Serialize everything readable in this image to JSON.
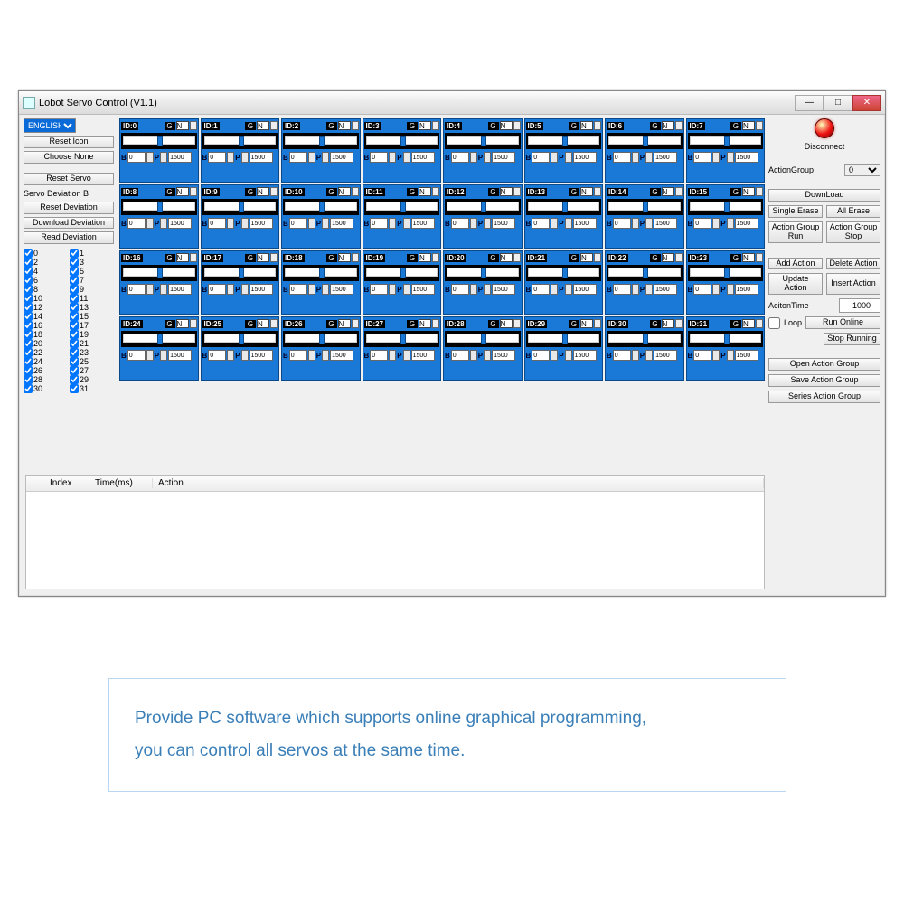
{
  "window": {
    "title": "Lobot Servo Control (V1.1)"
  },
  "left": {
    "language": "ENGLISH",
    "reset_icon": "Reset Icon",
    "choose_none": "Choose None",
    "reset_servo": "Reset Servo",
    "deviation_label": "Servo Deviation B",
    "reset_dev": "Reset Deviation",
    "download_dev": "Download Deviation",
    "read_dev": "Read Deviation",
    "checks": [
      0,
      1,
      2,
      3,
      4,
      5,
      6,
      7,
      8,
      9,
      10,
      11,
      12,
      13,
      14,
      15,
      16,
      17,
      18,
      19,
      20,
      21,
      22,
      23,
      24,
      25,
      26,
      27,
      28,
      29,
      30,
      31
    ]
  },
  "servos": {
    "count": 32,
    "b_value": "0",
    "p_value": "1500",
    "g_label": "G",
    "n_label": "N",
    "b_label": "B",
    "p_label": "P",
    "bg_color": "#1a78d6",
    "border_color": "#0a4a8a"
  },
  "right": {
    "disconnect": "Disconnect",
    "action_group_label": "ActionGroup",
    "action_group_value": "0",
    "download": "DownLoad",
    "single_erase": "Single Erase",
    "all_erase": "All Erase",
    "action_group_run": "Action Group Run",
    "action_group_stop": "Action Group Stop",
    "add_action": "Add Action",
    "delete_action": "Delete Action",
    "update_action": "Update Action",
    "insert_action": "Insert Action",
    "action_time_label": "AcitonTime",
    "action_time_value": "1000",
    "loop": "Loop",
    "run_online": "Run Online",
    "stop_running": "Stop Running",
    "open_ag": "Open Action Group",
    "save_ag": "Save Action Group",
    "series_ag": "Series Action Group"
  },
  "table": {
    "col_index": "Index",
    "col_time": "Time(ms)",
    "col_action": "Action"
  },
  "caption": {
    "line1": "Provide PC software which supports online graphical programming,",
    "line2": "you can control all servos at the same time."
  }
}
